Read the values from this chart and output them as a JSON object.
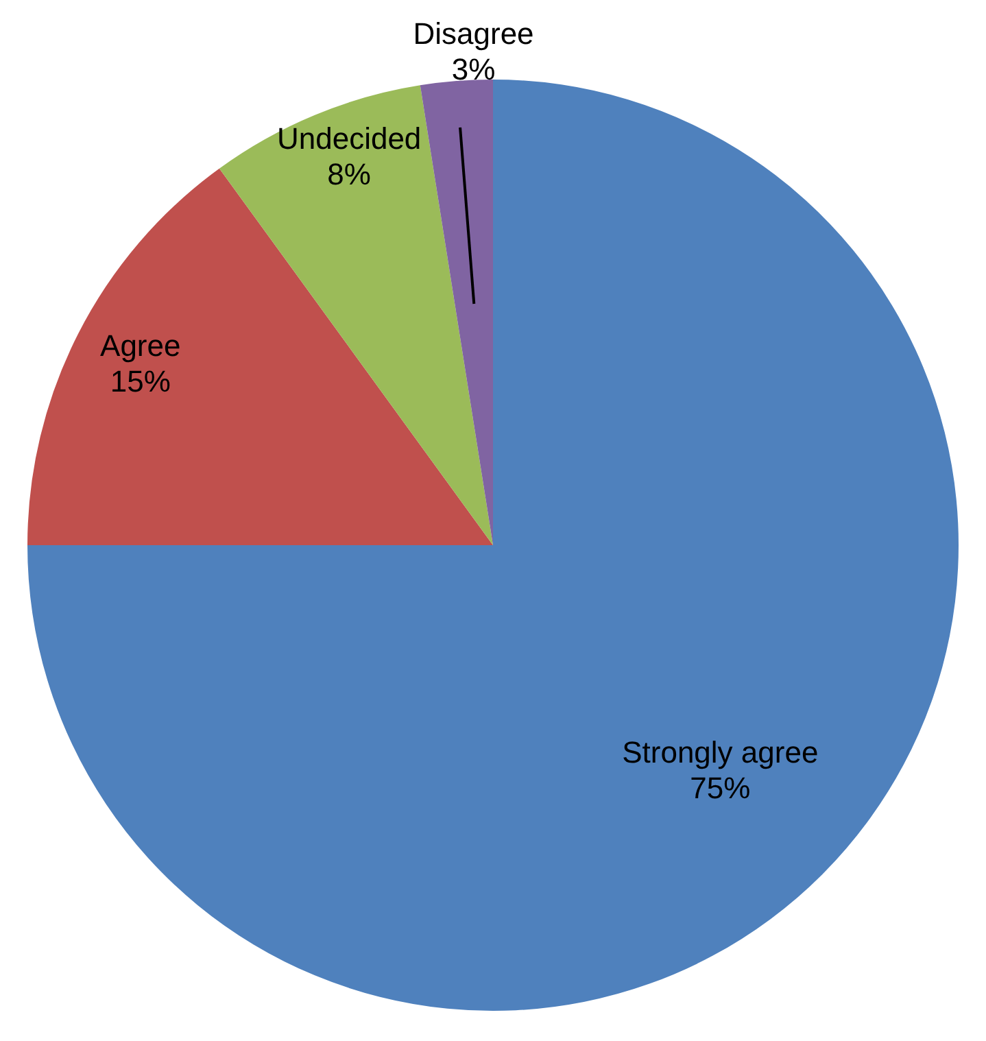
{
  "chart_data": {
    "type": "pie",
    "categories": [
      "Strongly agree",
      "Agree",
      "Undecided",
      "Disagree"
    ],
    "values": [
      75,
      15,
      7.5,
      2.5
    ],
    "value_labels": [
      "75%",
      "15%",
      "8%",
      "3%"
    ],
    "colors": [
      "#4f81bd",
      "#c0504d",
      "#9bbb59",
      "#8064a2"
    ]
  }
}
